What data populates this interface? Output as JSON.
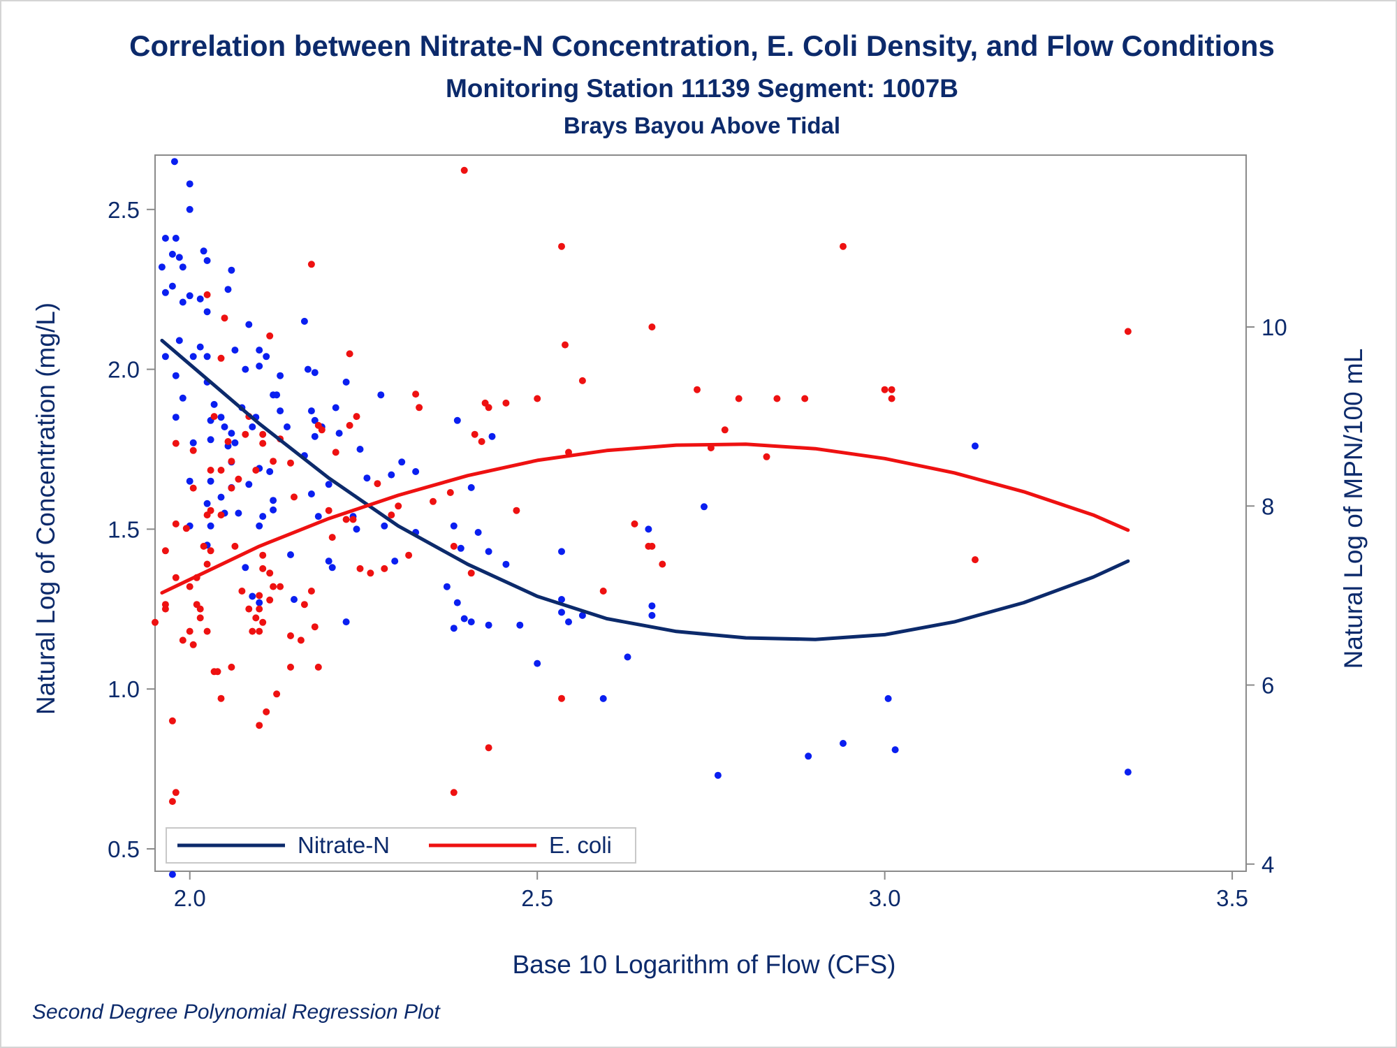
{
  "chart_data": {
    "type": "scatter",
    "title": "Correlation between Nitrate-N Concentration, E. Coli Density, and Flow Conditions",
    "subtitle": "Monitoring Station 11139 Segment: 1007B",
    "subtitle2": "Brays Bayou Above Tidal",
    "footnote": "Second Degree Polynomial Regression Plot",
    "xlabel": "Base 10 Logarithm of Flow (CFS)",
    "ylabel": "Natural Log of Concentration (mg/L)",
    "y2label": "Natural Log of MPN/100 mL",
    "xlim": [
      1.95,
      3.52
    ],
    "ylim": [
      0.43,
      2.67
    ],
    "y2lim": [
      3.92,
      11.92
    ],
    "xticks": [
      "2.0",
      "2.5",
      "3.0",
      "3.5"
    ],
    "yticks": [
      "0.5",
      "1.0",
      "1.5",
      "2.0",
      "2.5"
    ],
    "y2ticks": [
      "4",
      "6",
      "8",
      "10"
    ],
    "legend_position": "bottom-left",
    "grid": false,
    "colors": {
      "nitrate_points": "#0a1ff0",
      "ecoli_points": "#ee1111",
      "nitrate_line": "#0c2a6b",
      "ecoli_line": "#ee1111",
      "axis": "#8a8a8a",
      "text": "#0c2a6b"
    },
    "series": [
      {
        "name": "Nitrate-N",
        "axis": "left",
        "kind": "points",
        "points": [
          [
            1.965,
            2.41
          ],
          [
            1.98,
            2.41
          ],
          [
            1.96,
            2.32
          ],
          [
            1.99,
            2.32
          ],
          [
            1.975,
            2.36
          ],
          [
            1.985,
            2.35
          ],
          [
            1.965,
            2.24
          ],
          [
            1.975,
            2.26
          ],
          [
            2.0,
            2.23
          ],
          [
            1.99,
            2.21
          ],
          [
            2.015,
            2.22
          ],
          [
            2.02,
            2.37
          ],
          [
            2.025,
            2.34
          ],
          [
            2.055,
            2.25
          ],
          [
            2.06,
            2.31
          ],
          [
            1.978,
            2.65
          ],
          [
            2.0,
            2.58
          ],
          [
            2.0,
            2.5
          ],
          [
            1.965,
            2.04
          ],
          [
            1.985,
            2.09
          ],
          [
            2.005,
            2.04
          ],
          [
            1.98,
            1.98
          ],
          [
            1.99,
            1.91
          ],
          [
            1.98,
            1.85
          ],
          [
            2.005,
            1.77
          ],
          [
            2.0,
            1.65
          ],
          [
            2.0,
            1.51
          ],
          [
            2.015,
            2.07
          ],
          [
            2.025,
            2.18
          ],
          [
            2.025,
            2.04
          ],
          [
            2.025,
            1.96
          ],
          [
            2.035,
            1.89
          ],
          [
            2.03,
            1.84
          ],
          [
            2.03,
            1.78
          ],
          [
            2.045,
            1.85
          ],
          [
            2.05,
            1.82
          ],
          [
            2.055,
            1.76
          ],
          [
            2.06,
            1.8
          ],
          [
            2.065,
            1.77
          ],
          [
            2.065,
            2.06
          ],
          [
            2.08,
            2.0
          ],
          [
            2.085,
            2.14
          ],
          [
            2.1,
            2.01
          ],
          [
            2.1,
            2.06
          ],
          [
            2.11,
            2.04
          ],
          [
            2.075,
            1.88
          ],
          [
            2.095,
            1.85
          ],
          [
            2.09,
            1.82
          ],
          [
            2.1,
            1.69
          ],
          [
            2.115,
            1.68
          ],
          [
            2.12,
            1.92
          ],
          [
            2.125,
            1.92
          ],
          [
            2.13,
            1.87
          ],
          [
            2.14,
            1.82
          ],
          [
            2.13,
            1.98
          ],
          [
            2.165,
            2.15
          ],
          [
            2.17,
            2.0
          ],
          [
            2.18,
            1.99
          ],
          [
            2.175,
            1.87
          ],
          [
            2.18,
            1.84
          ],
          [
            2.19,
            1.82
          ],
          [
            2.18,
            1.79
          ],
          [
            2.165,
            1.73
          ],
          [
            2.12,
            1.59
          ],
          [
            2.12,
            1.56
          ],
          [
            2.105,
            1.54
          ],
          [
            2.1,
            1.51
          ],
          [
            2.085,
            1.64
          ],
          [
            2.06,
            1.71
          ],
          [
            2.06,
            1.63
          ],
          [
            2.045,
            1.6
          ],
          [
            2.03,
            1.65
          ],
          [
            2.025,
            1.58
          ],
          [
            2.03,
            1.51
          ],
          [
            2.025,
            1.45
          ],
          [
            2.05,
            1.55
          ],
          [
            2.07,
            1.55
          ],
          [
            2.08,
            1.38
          ],
          [
            2.09,
            1.29
          ],
          [
            2.1,
            1.27
          ],
          [
            2.145,
            1.42
          ],
          [
            2.15,
            1.28
          ],
          [
            2.175,
            1.61
          ],
          [
            2.185,
            1.54
          ],
          [
            2.2,
            1.64
          ],
          [
            2.2,
            1.4
          ],
          [
            2.205,
            1.38
          ],
          [
            2.21,
            1.88
          ],
          [
            2.215,
            1.8
          ],
          [
            2.225,
            1.96
          ],
          [
            2.225,
            1.21
          ],
          [
            2.235,
            1.54
          ],
          [
            2.24,
            1.5
          ],
          [
            2.245,
            1.75
          ],
          [
            2.255,
            1.66
          ],
          [
            2.275,
            1.92
          ],
          [
            2.28,
            1.51
          ],
          [
            2.29,
            1.67
          ],
          [
            2.295,
            1.4
          ],
          [
            2.305,
            1.71
          ],
          [
            2.325,
            1.49
          ],
          [
            2.325,
            1.68
          ],
          [
            2.37,
            1.32
          ],
          [
            2.38,
            1.51
          ],
          [
            2.38,
            1.19
          ],
          [
            2.385,
            1.27
          ],
          [
            2.385,
            1.84
          ],
          [
            2.39,
            1.44
          ],
          [
            2.395,
            1.22
          ],
          [
            2.405,
            1.21
          ],
          [
            2.405,
            1.63
          ],
          [
            2.415,
            1.49
          ],
          [
            2.43,
            1.43
          ],
          [
            2.43,
            1.2
          ],
          [
            2.435,
            1.79
          ],
          [
            2.455,
            1.39
          ],
          [
            2.475,
            1.2
          ],
          [
            2.5,
            1.08
          ],
          [
            2.535,
            1.28
          ],
          [
            2.535,
            1.24
          ],
          [
            2.535,
            1.43
          ],
          [
            2.545,
            1.21
          ],
          [
            2.565,
            1.23
          ],
          [
            2.595,
            0.97
          ],
          [
            2.63,
            1.1
          ],
          [
            2.66,
            1.5
          ],
          [
            2.665,
            1.26
          ],
          [
            2.665,
            1.23
          ],
          [
            2.74,
            1.57
          ],
          [
            2.76,
            0.73
          ],
          [
            2.89,
            0.79
          ],
          [
            2.94,
            0.83
          ],
          [
            3.005,
            0.97
          ],
          [
            3.015,
            0.81
          ],
          [
            3.13,
            1.76
          ],
          [
            3.35,
            0.74
          ],
          [
            1.975,
            0.42
          ]
        ]
      },
      {
        "name": "E. coli",
        "axis": "right",
        "kind": "points",
        "points": [
          [
            1.95,
            6.7
          ],
          [
            1.965,
            6.9
          ],
          [
            1.965,
            6.85
          ],
          [
            1.965,
            7.5
          ],
          [
            1.975,
            5.6
          ],
          [
            1.98,
            4.8
          ],
          [
            1.98,
            7.8
          ],
          [
            1.98,
            7.2
          ],
          [
            1.99,
            6.5
          ],
          [
            1.99,
            4.3
          ],
          [
            1.995,
            7.75
          ],
          [
            2.0,
            7.1
          ],
          [
            2.0,
            6.6
          ],
          [
            2.005,
            6.45
          ],
          [
            2.01,
            6.9
          ],
          [
            2.005,
            8.2
          ],
          [
            1.98,
            8.7
          ],
          [
            2.005,
            8.62
          ],
          [
            2.015,
            6.85
          ],
          [
            2.015,
            6.75
          ],
          [
            2.02,
            7.55
          ],
          [
            2.025,
            7.9
          ],
          [
            2.03,
            7.95
          ],
          [
            2.03,
            8.4
          ],
          [
            2.035,
            9.0
          ],
          [
            2.025,
            10.36
          ],
          [
            2.045,
            9.65
          ],
          [
            2.045,
            8.4
          ],
          [
            2.05,
            10.1
          ],
          [
            2.055,
            8.72
          ],
          [
            2.06,
            8.5
          ],
          [
            2.06,
            8.2
          ],
          [
            2.07,
            8.3
          ],
          [
            2.08,
            8.8
          ],
          [
            2.085,
            9.0
          ],
          [
            2.095,
            8.4
          ],
          [
            2.105,
            8.7
          ],
          [
            2.105,
            8.8
          ],
          [
            2.115,
            9.9
          ],
          [
            2.12,
            8.5
          ],
          [
            2.13,
            8.75
          ],
          [
            2.145,
            8.48
          ],
          [
            2.15,
            8.1
          ],
          [
            2.175,
            10.7
          ],
          [
            2.185,
            8.9
          ],
          [
            2.19,
            8.85
          ],
          [
            2.2,
            7.95
          ],
          [
            2.205,
            7.65
          ],
          [
            2.21,
            8.6
          ],
          [
            2.225,
            7.85
          ],
          [
            2.23,
            8.9
          ],
          [
            2.24,
            9.0
          ],
          [
            2.23,
            9.7
          ],
          [
            2.235,
            7.85
          ],
          [
            2.245,
            7.3
          ],
          [
            2.26,
            7.25
          ],
          [
            2.27,
            8.25
          ],
          [
            2.28,
            7.3
          ],
          [
            2.29,
            7.9
          ],
          [
            2.3,
            8.0
          ],
          [
            2.315,
            7.45
          ],
          [
            2.325,
            9.25
          ],
          [
            2.33,
            9.1
          ],
          [
            2.35,
            8.05
          ],
          [
            2.375,
            8.15
          ],
          [
            2.38,
            7.55
          ],
          [
            2.38,
            4.8
          ],
          [
            2.395,
            11.75
          ],
          [
            2.405,
            7.25
          ],
          [
            2.41,
            8.8
          ],
          [
            2.42,
            8.72
          ],
          [
            2.425,
            9.15
          ],
          [
            2.43,
            9.1
          ],
          [
            2.43,
            5.3
          ],
          [
            2.455,
            9.15
          ],
          [
            2.47,
            7.95
          ],
          [
            2.5,
            9.2
          ],
          [
            2.535,
            10.9
          ],
          [
            2.535,
            5.85
          ],
          [
            2.54,
            9.8
          ],
          [
            2.545,
            8.6
          ],
          [
            2.565,
            9.4
          ],
          [
            2.595,
            7.05
          ],
          [
            2.64,
            7.8
          ],
          [
            2.66,
            7.55
          ],
          [
            2.665,
            10.0
          ],
          [
            2.665,
            7.55
          ],
          [
            2.68,
            7.35
          ],
          [
            2.73,
            9.3
          ],
          [
            2.75,
            8.65
          ],
          [
            2.77,
            8.85
          ],
          [
            2.79,
            9.2
          ],
          [
            2.83,
            8.55
          ],
          [
            2.845,
            9.2
          ],
          [
            2.885,
            9.2
          ],
          [
            2.94,
            10.9
          ],
          [
            3.0,
            9.3
          ],
          [
            3.01,
            9.3
          ],
          [
            3.01,
            9.2
          ],
          [
            3.13,
            7.4
          ],
          [
            3.35,
            9.95
          ],
          [
            2.1,
            5.55
          ],
          [
            2.105,
            7.3
          ],
          [
            2.1,
            6.6
          ],
          [
            2.115,
            6.95
          ],
          [
            2.13,
            7.1
          ],
          [
            2.145,
            6.55
          ],
          [
            2.145,
            6.2
          ],
          [
            2.16,
            6.5
          ],
          [
            2.165,
            6.9
          ],
          [
            2.175,
            7.05
          ],
          [
            2.125,
            5.9
          ],
          [
            2.11,
            5.7
          ],
          [
            2.06,
            6.2
          ],
          [
            2.04,
            6.15
          ],
          [
            2.045,
            5.85
          ],
          [
            2.035,
            6.15
          ],
          [
            2.025,
            6.6
          ],
          [
            2.03,
            7.5
          ],
          [
            2.045,
            7.9
          ],
          [
            2.065,
            7.55
          ],
          [
            2.075,
            7.05
          ],
          [
            2.085,
            6.85
          ],
          [
            2.09,
            6.6
          ],
          [
            2.1,
            6.85
          ],
          [
            2.105,
            7.45
          ],
          [
            2.115,
            7.25
          ],
          [
            2.12,
            7.1
          ],
          [
            1.975,
            4.7
          ],
          [
            2.03,
            4.05
          ],
          [
            2.18,
            6.65
          ],
          [
            2.185,
            6.2
          ],
          [
            2.105,
            6.7
          ],
          [
            2.095,
            6.75
          ],
          [
            2.1,
            7.0
          ],
          [
            2.01,
            7.2
          ],
          [
            2.025,
            7.35
          ]
        ]
      },
      {
        "name": "Nitrate-N",
        "axis": "left",
        "kind": "fit",
        "points": [
          [
            1.96,
            2.09
          ],
          [
            2.1,
            1.83
          ],
          [
            2.2,
            1.66
          ],
          [
            2.3,
            1.51
          ],
          [
            2.4,
            1.39
          ],
          [
            2.5,
            1.29
          ],
          [
            2.6,
            1.22
          ],
          [
            2.7,
            1.18
          ],
          [
            2.8,
            1.16
          ],
          [
            2.9,
            1.155
          ],
          [
            3.0,
            1.17
          ],
          [
            3.1,
            1.21
          ],
          [
            3.2,
            1.27
          ],
          [
            3.3,
            1.35
          ],
          [
            3.35,
            1.4
          ]
        ]
      },
      {
        "name": "E. coli",
        "axis": "right",
        "kind": "fit",
        "points": [
          [
            1.96,
            7.03
          ],
          [
            2.1,
            7.55
          ],
          [
            2.2,
            7.86
          ],
          [
            2.3,
            8.12
          ],
          [
            2.4,
            8.34
          ],
          [
            2.5,
            8.51
          ],
          [
            2.6,
            8.62
          ],
          [
            2.7,
            8.68
          ],
          [
            2.8,
            8.69
          ],
          [
            2.9,
            8.64
          ],
          [
            3.0,
            8.53
          ],
          [
            3.1,
            8.37
          ],
          [
            3.2,
            8.16
          ],
          [
            3.3,
            7.9
          ],
          [
            3.35,
            7.73
          ]
        ]
      }
    ]
  }
}
